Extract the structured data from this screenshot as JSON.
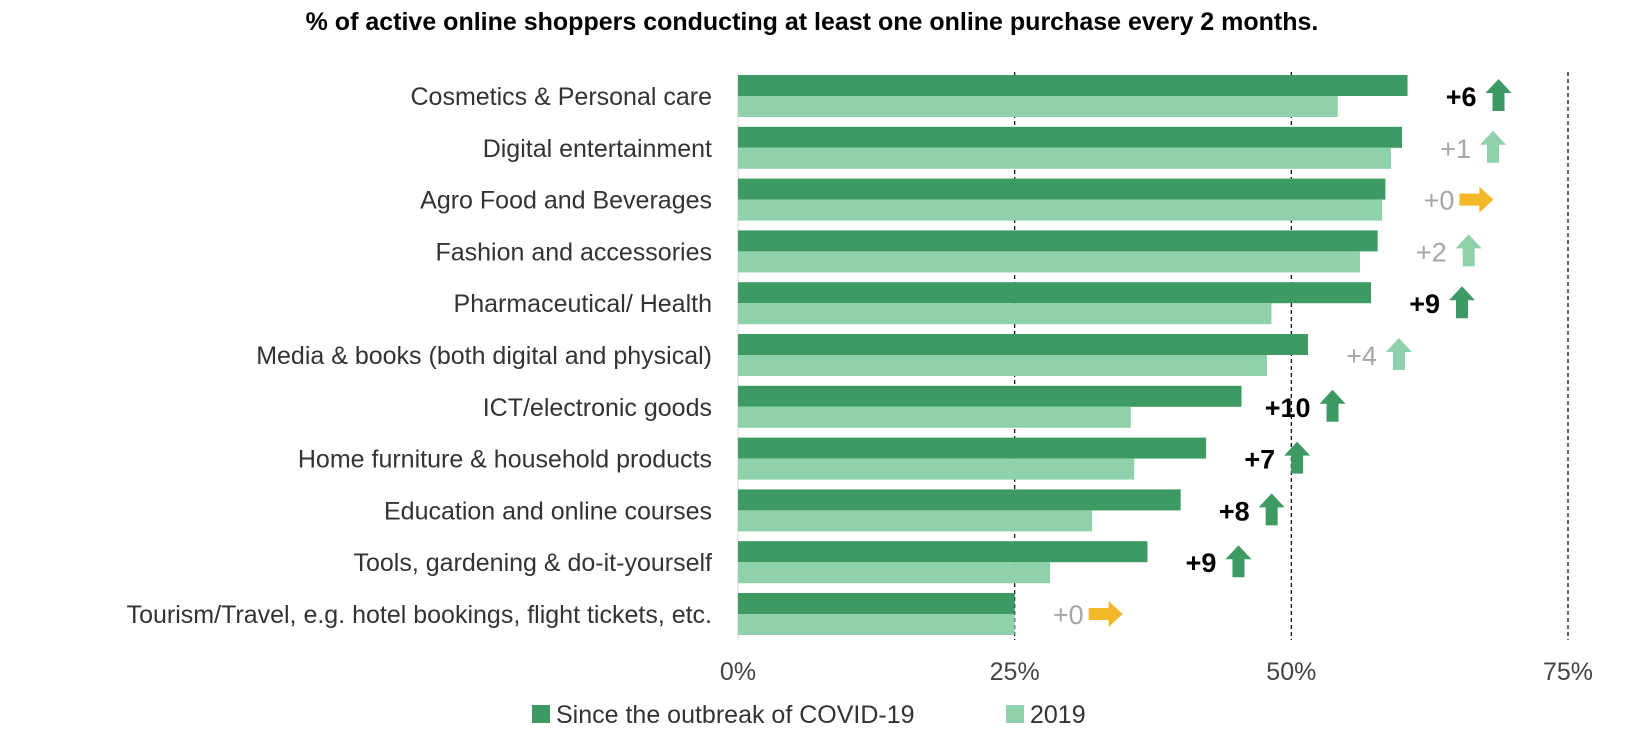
{
  "chart_data": {
    "type": "bar",
    "orientation": "horizontal",
    "title": "% of active online shoppers conducting  at least one online purchase every 2 months.",
    "categories": [
      "Cosmetics & Personal care",
      "Digital entertainment",
      "Agro Food and Beverages",
      "Fashion and accessories",
      "Pharmaceutical/ Health",
      "Media & books (both digital and physical)",
      "ICT/electronic goods",
      "Home furniture & household products",
      "Education and online courses",
      "Tools, gardening & do-it-yourself",
      "Tourism/Travel, e.g. hotel bookings, flight tickets, etc."
    ],
    "series": [
      {
        "name": "Since the outbreak of COVID-19",
        "color": "#3d9a62",
        "values": [
          60.5,
          60,
          58.5,
          57.8,
          57.2,
          51.5,
          45.5,
          42.3,
          40,
          37,
          25
        ]
      },
      {
        "name": "2019",
        "color": "#8fd1aa",
        "values": [
          54.2,
          59,
          58.2,
          56.2,
          48.2,
          47.8,
          35.5,
          35.8,
          32,
          28.2,
          25
        ]
      }
    ],
    "annotations": [
      {
        "text": "+6",
        "emphasis": "strong",
        "arrow": "up"
      },
      {
        "text": "+1",
        "emphasis": "weak",
        "arrow": "up"
      },
      {
        "text": "+0",
        "emphasis": "weak",
        "arrow": "right"
      },
      {
        "text": "+2",
        "emphasis": "weak",
        "arrow": "up"
      },
      {
        "text": "+9",
        "emphasis": "strong",
        "arrow": "up"
      },
      {
        "text": "+4",
        "emphasis": "weak",
        "arrow": "up"
      },
      {
        "text": "+10",
        "emphasis": "strong",
        "arrow": "up"
      },
      {
        "text": "+7",
        "emphasis": "strong",
        "arrow": "up"
      },
      {
        "text": "+8",
        "emphasis": "strong",
        "arrow": "up"
      },
      {
        "text": "+9",
        "emphasis": "strong",
        "arrow": "up"
      },
      {
        "text": "+0",
        "emphasis": "weak",
        "arrow": "right"
      }
    ],
    "xlim": [
      0,
      75
    ],
    "xticks": [
      0,
      25,
      50,
      75
    ],
    "xtick_labels": [
      "0%",
      "25%",
      "50%",
      "75%"
    ],
    "gridlines": "dashed vertical at 25%, 50%, 75%",
    "legend_position": "bottom",
    "arrow_colors": {
      "up_strong": "#3d9a62",
      "up_weak": "#8fd1aa",
      "neutral": "#f2b82a"
    }
  }
}
